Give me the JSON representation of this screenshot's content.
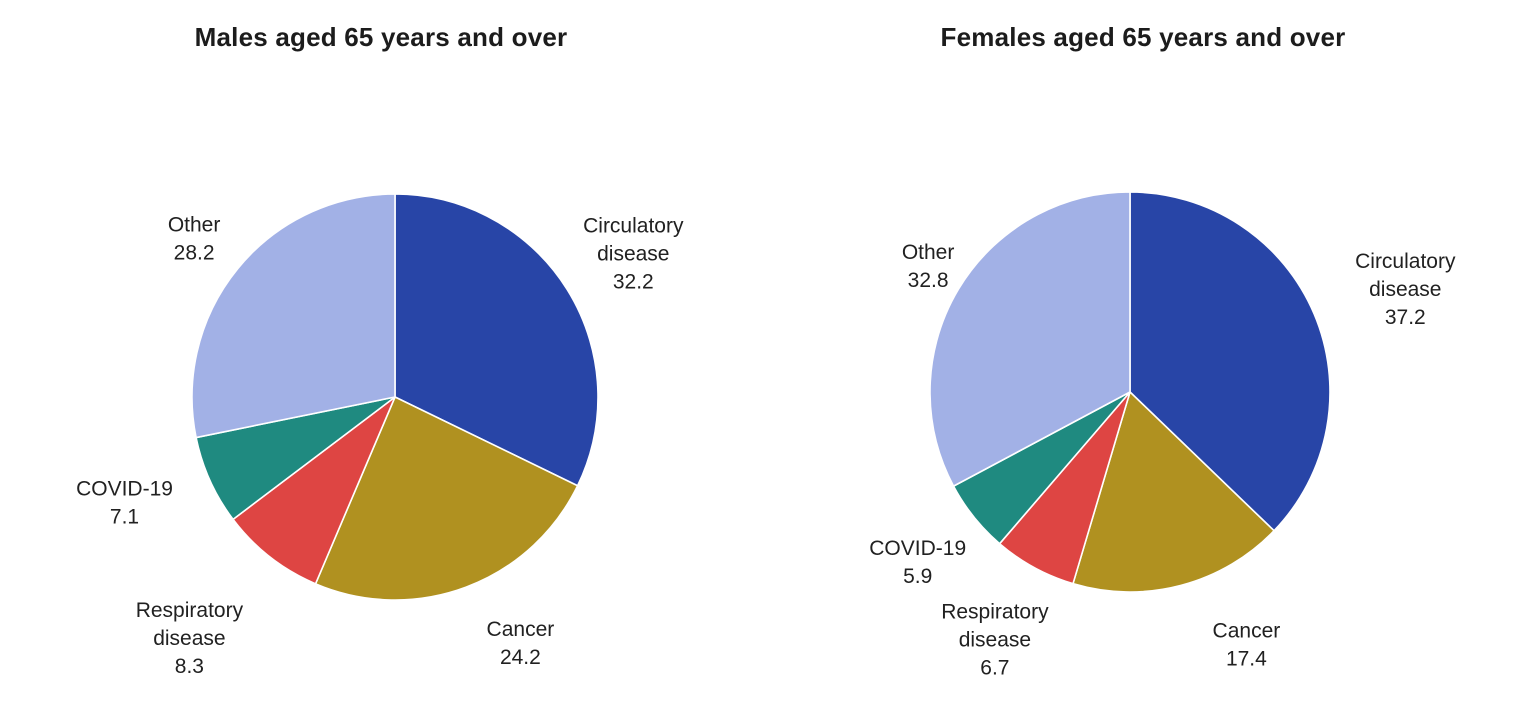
{
  "figure": {
    "background_color": "#ffffff",
    "text_color": "#212121"
  },
  "chart_data": [
    {
      "type": "pie",
      "title": "Males aged 65 years and over",
      "values_are": "percent",
      "start_angle": "12-o-clock",
      "direction": "clockwise",
      "labels_position": "outside",
      "legend": "none",
      "slices": [
        {
          "label": "Circulatory disease",
          "label_lines": [
            "Circulatory",
            "disease"
          ],
          "value": 32.2,
          "color": "#2845A7"
        },
        {
          "label": "Cancer",
          "label_lines": [
            "Cancer"
          ],
          "value": 24.2,
          "color": "#B09120"
        },
        {
          "label": "Respiratory disease",
          "label_lines": [
            "Respiratory",
            "disease"
          ],
          "value": 8.3,
          "color": "#DE4543"
        },
        {
          "label": "COVID-19",
          "label_lines": [
            "COVID-19"
          ],
          "value": 7.1,
          "color": "#1F8A80"
        },
        {
          "label": "Other",
          "label_lines": [
            "Other"
          ],
          "value": 28.2,
          "color": "#A2B1E6"
        }
      ]
    },
    {
      "type": "pie",
      "title": "Females aged 65 years and over",
      "values_are": "percent",
      "start_angle": "12-o-clock",
      "direction": "clockwise",
      "labels_position": "outside",
      "legend": "none",
      "slices": [
        {
          "label": "Circulatory disease",
          "label_lines": [
            "Circulatory",
            "disease"
          ],
          "value": 37.2,
          "color": "#2845A7"
        },
        {
          "label": "Cancer",
          "label_lines": [
            "Cancer"
          ],
          "value": 17.4,
          "color": "#B09120"
        },
        {
          "label": "Respiratory disease",
          "label_lines": [
            "Respiratory",
            "disease"
          ],
          "value": 6.7,
          "color": "#DE4543"
        },
        {
          "label": "COVID-19",
          "label_lines": [
            "COVID-19"
          ],
          "value": 5.9,
          "color": "#1F8A80"
        },
        {
          "label": "Other",
          "label_lines": [
            "Other"
          ],
          "value": 32.8,
          "color": "#A2B1E6"
        }
      ]
    }
  ]
}
